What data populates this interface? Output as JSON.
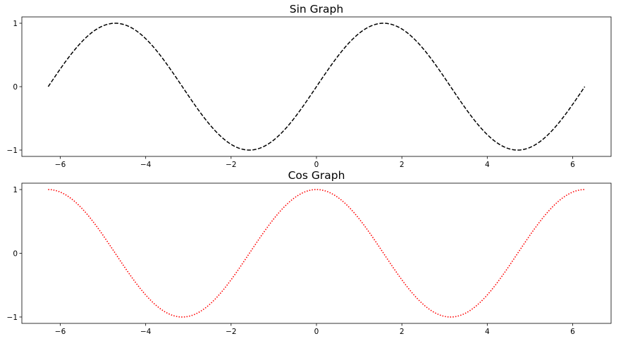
{
  "chart_data": [
    {
      "type": "line",
      "title": "Sin Graph",
      "xlabel": "",
      "ylabel": "",
      "xlim": [
        -6.9,
        6.9
      ],
      "ylim": [
        -1.1,
        1.1
      ],
      "x_ticks": [
        -6,
        -4,
        -2,
        0,
        2,
        4,
        6
      ],
      "x_tick_labels": [
        "−6",
        "−4",
        "−2",
        "0",
        "2",
        "4",
        "6"
      ],
      "y_ticks": [
        -1,
        0,
        1
      ],
      "y_tick_labels": [
        "−1",
        "0",
        "1"
      ],
      "grid": false,
      "series": [
        {
          "function": "sin",
          "x_range": [
            -6.283,
            6.283
          ],
          "line_style": "dashed",
          "color": "#000000",
          "x": [
            -6.283,
            -5.498,
            -4.712,
            -3.927,
            -3.142,
            -2.356,
            -1.571,
            -0.785,
            0,
            0.785,
            1.571,
            2.356,
            3.142,
            3.927,
            4.712,
            5.498,
            6.283
          ],
          "y": [
            0,
            0.707,
            1,
            0.707,
            0,
            -0.707,
            -1,
            -0.707,
            0,
            0.707,
            1,
            0.707,
            0,
            -0.707,
            -1,
            -0.707,
            0
          ]
        }
      ]
    },
    {
      "type": "line",
      "title": "Cos Graph",
      "xlabel": "",
      "ylabel": "",
      "xlim": [
        -6.9,
        6.9
      ],
      "ylim": [
        -1.1,
        1.1
      ],
      "x_ticks": [
        -6,
        -4,
        -2,
        0,
        2,
        4,
        6
      ],
      "x_tick_labels": [
        "−6",
        "−4",
        "−2",
        "0",
        "2",
        "4",
        "6"
      ],
      "y_ticks": [
        -1,
        0,
        1
      ],
      "y_tick_labels": [
        "−1",
        "0",
        "1"
      ],
      "grid": false,
      "series": [
        {
          "function": "cos",
          "x_range": [
            -6.283,
            6.283
          ],
          "line_style": "dotted",
          "color": "#ff0000",
          "x": [
            -6.283,
            -5.498,
            -4.712,
            -3.927,
            -3.142,
            -2.356,
            -1.571,
            -0.785,
            0,
            0.785,
            1.571,
            2.356,
            3.142,
            3.927,
            4.712,
            5.498,
            6.283
          ],
          "y": [
            1,
            0.707,
            0,
            -0.707,
            -1,
            -0.707,
            0,
            0.707,
            1,
            0.707,
            0,
            -0.707,
            -1,
            -0.707,
            0,
            0.707,
            1
          ]
        }
      ]
    }
  ]
}
